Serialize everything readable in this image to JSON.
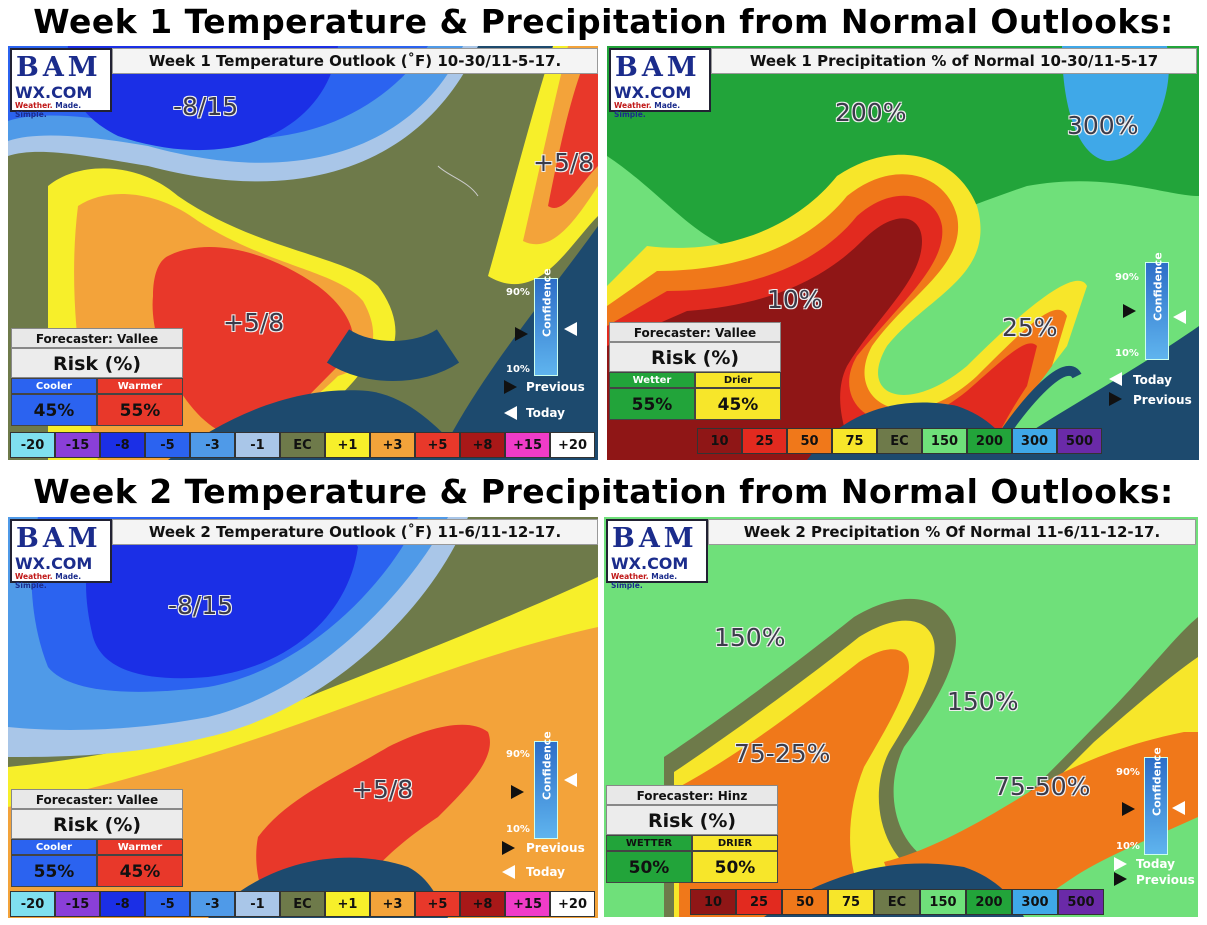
{
  "header1": "Week 1 Temperature & Precipitation from Normal Outlooks:",
  "header2": "Week 2 Temperature & Precipitation from Normal Outlooks:",
  "logo": {
    "letters": "BAM",
    "site": "WX.COM",
    "tag_a": "Weather.",
    "tag_b": "Made. Simple."
  },
  "confidence": {
    "label": "Confidence",
    "high": "90%",
    "low": "10%",
    "previous": "Previous",
    "today": "Today"
  },
  "temp_legend": [
    "-20",
    "-15",
    "-8",
    "-5",
    "-3",
    "-1",
    "EC",
    "+1",
    "+3",
    "+5",
    "+8",
    "+15",
    "+20"
  ],
  "temp_legend_colors": [
    "#7fe0f0",
    "#8a3fd8",
    "#1b2fe6",
    "#2b63f0",
    "#4f9ae8",
    "#a9c6e8",
    "#6e7a4a",
    "#f7ef2a",
    "#f3a33a",
    "#e8382a",
    "#a81818",
    "#f03cc8",
    "#ffffff"
  ],
  "precip_legend": [
    "10",
    "25",
    "50",
    "75",
    "EC",
    "150",
    "200",
    "300",
    "500"
  ],
  "precip_legend_colors": [
    "#8f1616",
    "#e22a1f",
    "#f0781a",
    "#f7e62a",
    "#6e7a4a",
    "#6fe07a",
    "#22a43a",
    "#3fa8e8",
    "#6a2aa8"
  ],
  "panels": {
    "w1t": {
      "title": "Week 1 Temperature Outlook (˚F) 10-30/11-5-17.",
      "forecaster": "Forecaster: Vallee",
      "risk": "Risk (%)",
      "left_label": "Cooler",
      "left_value": "45%",
      "right_label": "Warmer",
      "right_value": "55%",
      "labels": [
        "-8/15",
        "+5/8",
        "+5/8"
      ]
    },
    "w1p": {
      "title": "Week 1 Precipitation % of Normal 10-30/11-5-17",
      "forecaster": "Forecaster: Vallee",
      "risk": "Risk (%)",
      "left_label": "Wetter",
      "left_value": "55%",
      "right_label": "Drier",
      "right_value": "45%",
      "labels": [
        "200%",
        "300%",
        "10%",
        "25%"
      ]
    },
    "w2t": {
      "title": "Week 2 Temperature Outlook (˚F) 11-6/11-12-17.",
      "forecaster": "Forecaster: Vallee",
      "risk": "Risk (%)",
      "left_label": "Cooler",
      "left_value": "55%",
      "right_label": "Warmer",
      "right_value": "45%",
      "labels": [
        "-8/15",
        "+5/8"
      ]
    },
    "w2p": {
      "title": "Week 2 Precipitation % Of Normal 11-6/11-12-17.",
      "forecaster": "Forecaster: Hinz",
      "risk": "Risk (%)",
      "left_label": "WETTER",
      "left_value": "50%",
      "right_label": "DRIER",
      "right_value": "50%",
      "labels": [
        "150%",
        "150%",
        "75-25%",
        "75-50%"
      ]
    }
  }
}
